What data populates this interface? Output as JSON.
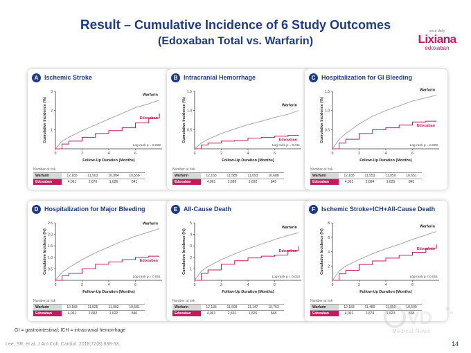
{
  "title": {
    "lead": "Result",
    "dash": " – ",
    "line1": "Cumulative Incidence of 6 Study Outcomes",
    "line2": "(Edoxaban Total vs. Warfarin)"
  },
  "logo": {
    "small": "once daily",
    "brand": "Lixiana",
    "sub": "edoxaban"
  },
  "footnote": "GI = gastrointestinal; ICH = intracranial hemorrhage",
  "reference": "Lee, SR. et al. J Am Coll. Cardiol. 2018;72(8):838-53.",
  "page_number": "14",
  "watermark": "Medical News",
  "risk_label": "Number at risk",
  "colors": {
    "warfarin": "#a6a6a6",
    "edoxaban": "#c8175d",
    "accent": "#1f3b86"
  },
  "chart_data": [
    {
      "type": "line",
      "letter": "A",
      "title": "Ischemic Stroke",
      "xlabel": "Follow-Up Duration (Months)",
      "ylabel": "Cumulative Incidence (%)",
      "xlim": [
        0,
        8
      ],
      "ylim": [
        0,
        3
      ],
      "xticks": [
        0,
        2,
        4,
        6
      ],
      "yticks": [
        1,
        2,
        3
      ],
      "yticklabels": [
        "1",
        "2",
        "3"
      ],
      "logrank": "Log-rank p = 0.032",
      "series": [
        {
          "name": "Warfarin",
          "x": [
            0,
            0.5,
            1,
            2,
            3,
            4,
            5,
            6,
            7,
            7.8
          ],
          "y": [
            0,
            0.4,
            0.6,
            0.95,
            1.25,
            1.55,
            1.85,
            2.15,
            2.35,
            2.55
          ]
        },
        {
          "name": "Edoxaban",
          "x": [
            0,
            0.5,
            1,
            2,
            3,
            4,
            5,
            6,
            7,
            7.8
          ],
          "y": [
            0,
            0.25,
            0.4,
            0.6,
            0.8,
            0.95,
            1.1,
            1.35,
            1.6,
            1.85
          ]
        }
      ],
      "risk": {
        "warfarin": [
          "12,183",
          "11,503",
          "10,984",
          "10,556"
        ],
        "edoxaban": [
          "4,061",
          "2,676",
          "1,626",
          "841"
        ]
      }
    },
    {
      "type": "line",
      "letter": "B",
      "title": "Intracranial Hemorrhage",
      "xlabel": "Follow-Up Duration (Months)",
      "ylabel": "Cumulative Incidence (%)",
      "xlim": [
        0,
        8
      ],
      "ylim": [
        0,
        1.5
      ],
      "xticks": [
        0,
        2,
        4,
        6
      ],
      "yticks": [
        0.5,
        1.0,
        1.5
      ],
      "yticklabels": [
        "0.5",
        "1.0",
        "1.5"
      ],
      "logrank": "Log-rank p = 0.011",
      "series": [
        {
          "name": "Warfarin",
          "x": [
            0,
            0.5,
            1,
            2,
            3,
            4,
            5,
            6,
            7,
            7.8
          ],
          "y": [
            0,
            0.15,
            0.25,
            0.4,
            0.52,
            0.63,
            0.72,
            0.82,
            0.9,
            1.0
          ]
        },
        {
          "name": "Edoxaban",
          "x": [
            0,
            0.5,
            1,
            2,
            3,
            4,
            5,
            6,
            7,
            7.8
          ],
          "y": [
            0,
            0.1,
            0.15,
            0.2,
            0.22,
            0.28,
            0.3,
            0.33,
            0.35,
            0.35
          ]
        }
      ],
      "risk": {
        "warfarin": [
          "12,183",
          "11,585",
          "11,093",
          "10,688"
        ],
        "edoxaban": [
          "4,061",
          "2,689",
          "1,632",
          "845"
        ]
      }
    },
    {
      "type": "line",
      "letter": "C",
      "title": "Hospitalization for GI Bleeding",
      "xlabel": "Follow-Up Duration (Months)",
      "ylabel": "Cumulative Incidence (%)",
      "xlim": [
        0,
        8
      ],
      "ylim": [
        0,
        1.5
      ],
      "xticks": [
        0,
        2,
        4,
        6
      ],
      "yticks": [
        0.5,
        1.0,
        1.5
      ],
      "yticklabels": [
        "0.5",
        "1.0",
        "1.5"
      ],
      "logrank": "Log-rank p = 0.029",
      "series": [
        {
          "name": "Warfarin",
          "x": [
            0,
            0.5,
            1,
            2,
            3,
            4,
            5,
            6,
            7,
            7.8
          ],
          "y": [
            0,
            0.25,
            0.4,
            0.65,
            0.85,
            1.0,
            1.12,
            1.25,
            1.33,
            1.4
          ]
        },
        {
          "name": "Edoxaban",
          "x": [
            0,
            0.5,
            1,
            2,
            3,
            4,
            5,
            6,
            7,
            7.8
          ],
          "y": [
            0,
            0.15,
            0.25,
            0.4,
            0.5,
            0.55,
            0.62,
            0.7,
            0.72,
            0.72
          ]
        }
      ],
      "risk": {
        "warfarin": [
          "12,183",
          "11,553",
          "11,059",
          "10,651"
        ],
        "edoxaban": [
          "4,061",
          "2,684",
          "1,625",
          "843"
        ]
      }
    },
    {
      "type": "line",
      "letter": "D",
      "title": "Hospitalization for Major Bleeding",
      "xlabel": "Follow-Up Duration (Months)",
      "ylabel": "Cumulative Incidence (%)",
      "xlim": [
        0,
        8
      ],
      "ylim": [
        0,
        2.5
      ],
      "xticks": [
        0,
        2,
        4,
        6
      ],
      "yticks": [
        0.5,
        1.0,
        1.5,
        2.0,
        2.5
      ],
      "yticklabels": [
        "0.5",
        "1.0",
        "1.5",
        "2.0",
        "2.5"
      ],
      "logrank": "Log-rank p = 0.001",
      "series": [
        {
          "name": "Warfarin",
          "x": [
            0,
            0.5,
            1,
            2,
            3,
            4,
            5,
            6,
            7,
            7.8
          ],
          "y": [
            0,
            0.35,
            0.55,
            0.9,
            1.2,
            1.45,
            1.7,
            1.92,
            2.1,
            2.25
          ]
        },
        {
          "name": "Edoxaban",
          "x": [
            0,
            0.5,
            1,
            2,
            3,
            4,
            5,
            6,
            7,
            7.8
          ],
          "y": [
            0,
            0.2,
            0.3,
            0.5,
            0.7,
            0.8,
            0.9,
            1.0,
            1.05,
            1.05
          ]
        }
      ],
      "risk": {
        "warfarin": [
          "12,183",
          "11,525",
          "11,002",
          "10,581"
        ],
        "edoxaban": [
          "4,061",
          "2,682",
          "1,622",
          "840"
        ]
      }
    },
    {
      "type": "line",
      "letter": "E",
      "title": "All-Cause Death",
      "xlabel": "Follow-Up Duration (Months)",
      "ylabel": "Cumulative Incidence (%)",
      "xlim": [
        0,
        8
      ],
      "ylim": [
        0,
        5
      ],
      "xticks": [
        0,
        2,
        4,
        6
      ],
      "yticks": [
        1,
        2,
        3,
        4,
        5
      ],
      "yticklabels": [
        "1",
        "2",
        "3",
        "4",
        "5"
      ],
      "logrank": "Log-rank p = 0.010",
      "series": [
        {
          "name": "Warfarin",
          "x": [
            0,
            0.5,
            1,
            2,
            3,
            4,
            5,
            6,
            7,
            7.8
          ],
          "y": [
            0,
            0.8,
            1.2,
            1.8,
            2.3,
            2.75,
            3.15,
            3.55,
            3.9,
            4.15
          ]
        },
        {
          "name": "Edoxaban",
          "x": [
            0,
            0.5,
            1,
            2,
            3,
            4,
            5,
            6,
            7,
            7.8
          ],
          "y": [
            0,
            0.6,
            0.9,
            1.4,
            1.7,
            1.95,
            2.1,
            2.2,
            2.6,
            2.95
          ]
        }
      ],
      "risk": {
        "warfarin": [
          "12,183",
          "11,609",
          "11,147",
          "10,753"
        ],
        "edoxaban": [
          "4,061",
          "2,691",
          "1,626",
          "848"
        ]
      }
    },
    {
      "type": "line",
      "letter": "F",
      "title": "Ischemic Stroke+ICH+All-Cause Death",
      "xlabel": "Follow-Up Duration (Months)",
      "ylabel": "Cumulative Incidence (%)",
      "xlim": [
        0,
        8
      ],
      "ylim": [
        0,
        8
      ],
      "xticks": [
        0,
        2,
        4,
        6
      ],
      "yticks": [
        2,
        4,
        6,
        8
      ],
      "yticklabels": [
        "2",
        "4",
        "6",
        "8"
      ],
      "logrank": "Log-rank p < 0.001",
      "series": [
        {
          "name": "Warfarin",
          "x": [
            0,
            0.5,
            1,
            2,
            3,
            4,
            5,
            6,
            7,
            7.8
          ],
          "y": [
            0,
            1.3,
            2.0,
            2.9,
            3.7,
            4.4,
            5.0,
            5.7,
            6.3,
            6.8
          ]
        },
        {
          "name": "Edoxaban",
          "x": [
            0,
            0.5,
            1,
            2,
            3,
            4,
            5,
            6,
            7,
            7.8
          ],
          "y": [
            0,
            0.9,
            1.4,
            2.2,
            2.7,
            3.1,
            3.5,
            3.9,
            4.5,
            5.0
          ]
        }
      ],
      "risk": {
        "warfarin": [
          "12,183",
          "11,480",
          "11,050",
          "10,509"
        ],
        "edoxaban": [
          "4,061",
          "2,674",
          "1,623",
          "838"
        ]
      }
    }
  ]
}
